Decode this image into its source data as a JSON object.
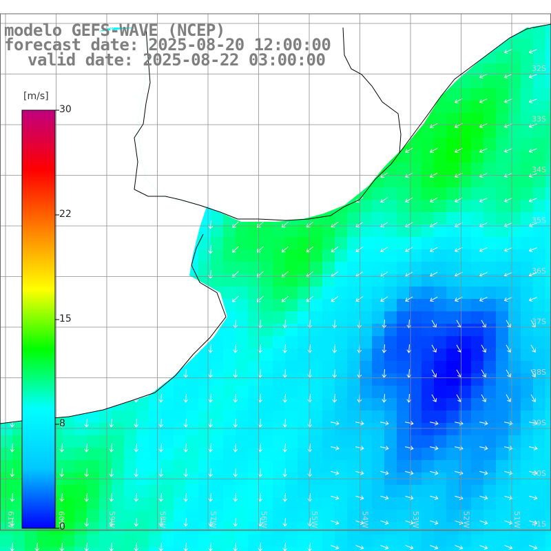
{
  "title": {
    "line1": "modelo GEFS-WAVE (NCEP)",
    "line2": "forecast date: 2025-08-20 12:00:00",
    "line3": "valid date: 2025-08-22 03:00:00"
  },
  "colorbar": {
    "unit": "[m/s]",
    "ticks": [
      "30",
      "22",
      "15",
      "8",
      "0"
    ],
    "min": 0,
    "max": 30,
    "colors": [
      "#0000ff",
      "#00c8ff",
      "#00ffff",
      "#00ff00",
      "#ffff00",
      "#ff8000",
      "#ff0000",
      "#c00080"
    ]
  },
  "map": {
    "lat_labels": [
      "32S",
      "33S",
      "34S",
      "35S",
      "36S",
      "37S",
      "38S",
      "39S",
      "40S",
      "41S"
    ],
    "lon_labels": [
      "61W",
      "60W",
      "59W",
      "58W",
      "57W",
      "56W",
      "55W",
      "54W",
      "53W",
      "52W",
      "51W"
    ],
    "land_color": "#ffffff",
    "coast_color": "#000000",
    "grid_color": "#8c8c8c",
    "arrow_color": "#ffffff"
  }
}
